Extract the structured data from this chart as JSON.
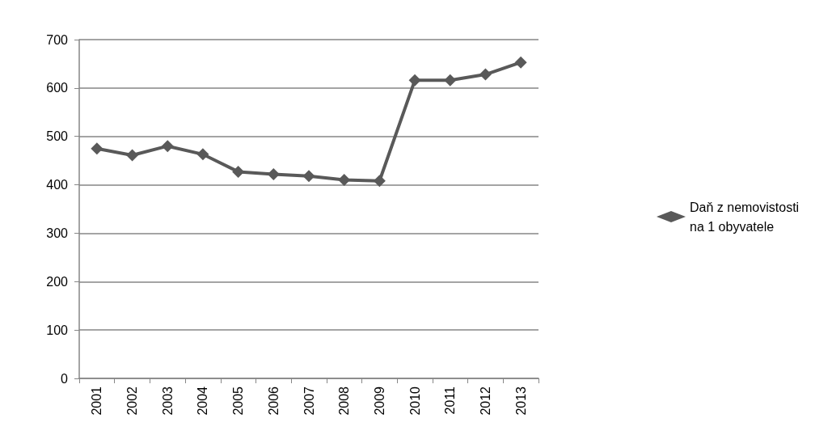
{
  "chart_data": {
    "type": "line",
    "categories": [
      "2001",
      "2002",
      "2003",
      "2004",
      "2005",
      "2006",
      "2007",
      "2008",
      "2009",
      "2010",
      "2011",
      "2012",
      "2013"
    ],
    "series": [
      {
        "name": "Daň z nemovistosti na 1 obyvatele",
        "color": "#595959",
        "values": [
          475,
          461,
          480,
          463,
          427,
          422,
          418,
          410,
          408,
          616,
          616,
          628,
          653
        ]
      }
    ],
    "ylim": [
      0,
      700
    ],
    "yticks": [
      0,
      100,
      200,
      300,
      400,
      500,
      600,
      700
    ],
    "grid": "y",
    "legend": "right",
    "marker": "diamond",
    "line_style": "solid"
  }
}
